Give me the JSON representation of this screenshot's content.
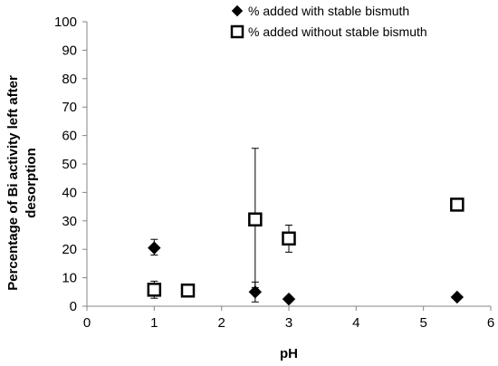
{
  "chart_data": {
    "type": "scatter",
    "xlabel": "pH",
    "ylabel": "Percentage of Bi activity left after desorption",
    "xlim": [
      0,
      6
    ],
    "ylim": [
      0,
      100
    ],
    "x_ticks": [
      "0",
      "1",
      "2",
      "3",
      "4",
      "5",
      "6"
    ],
    "y_ticks": [
      "0",
      "10",
      "20",
      "30",
      "40",
      "50",
      "60",
      "70",
      "80",
      "90",
      "100"
    ],
    "grid": false,
    "legend_position": "top-right",
    "series": [
      {
        "name": "% added  with stable bismuth",
        "marker": "filled-diamond",
        "color": "#000000",
        "points": [
          {
            "x": 1,
            "y": 20.5,
            "err_low": 18,
            "err_high": 23.5
          },
          {
            "x": 2.5,
            "y": 5,
            "err_low": 1.5,
            "err_high": 8.5
          },
          {
            "x": 3,
            "y": 2.5,
            "err_low": 1.8,
            "err_high": 3.2
          },
          {
            "x": 5.5,
            "y": 3.2,
            "err_low": 2.8,
            "err_high": 3.6
          }
        ]
      },
      {
        "name": "% added  without stable bismuth",
        "marker": "open-square",
        "color": "#000000",
        "points": [
          {
            "x": 1,
            "y": 5.8,
            "err_low": 2.8,
            "err_high": 8.8
          },
          {
            "x": 1.5,
            "y": 5.5,
            "err_low": 4.2,
            "err_high": 7.0
          },
          {
            "x": 2.5,
            "y": 30.5,
            "err_low": 6.5,
            "err_high": 55.5
          },
          {
            "x": 3,
            "y": 23.8,
            "err_low": 19.0,
            "err_high": 28.5
          },
          {
            "x": 5.5,
            "y": 35.7,
            "err_low": 34.5,
            "err_high": 37.0
          }
        ]
      }
    ]
  }
}
